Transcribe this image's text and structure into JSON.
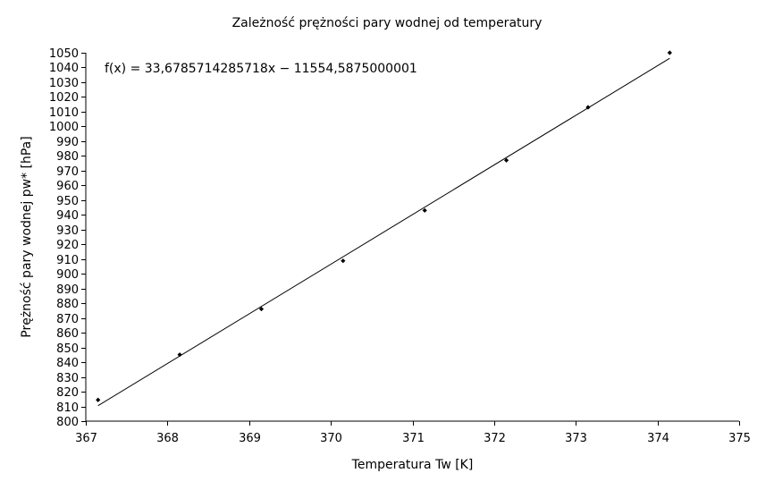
{
  "chart_data": {
    "type": "scatter",
    "title": "Zależność prężności pary wodnej od temperatury",
    "xlabel": "Temperatura Tw [K]",
    "ylabel": "Prężność pary wodnej pw* [hPa]",
    "xlim": [
      367,
      375
    ],
    "ylim": [
      800,
      1050
    ],
    "xticks": [
      367,
      368,
      369,
      370,
      371,
      372,
      373,
      374,
      375
    ],
    "yticks": [
      800,
      810,
      820,
      830,
      840,
      850,
      860,
      870,
      880,
      890,
      900,
      910,
      920,
      930,
      940,
      950,
      960,
      970,
      980,
      990,
      1000,
      1010,
      1020,
      1030,
      1040,
      1050
    ],
    "grid": false,
    "legend": "none",
    "points": [
      {
        "x": 367.15,
        "y": 814.4
      },
      {
        "x": 368.15,
        "y": 845.1
      },
      {
        "x": 369.15,
        "y": 876.1
      },
      {
        "x": 370.15,
        "y": 908.8
      },
      {
        "x": 371.15,
        "y": 943.0
      },
      {
        "x": 372.15,
        "y": 977.0
      },
      {
        "x": 373.15,
        "y": 1013.0
      },
      {
        "x": 374.15,
        "y": 1050.0
      }
    ],
    "trendline": {
      "equation": "f(x) = 33,6785714285718x − 11554,5875000001",
      "slope": 33.6785714285718,
      "intercept": -11554.5875000001,
      "x_start": 367.15,
      "x_end": 374.15
    },
    "colors": {
      "points": "#000000",
      "line": "#000000",
      "axes": "#000000"
    }
  }
}
